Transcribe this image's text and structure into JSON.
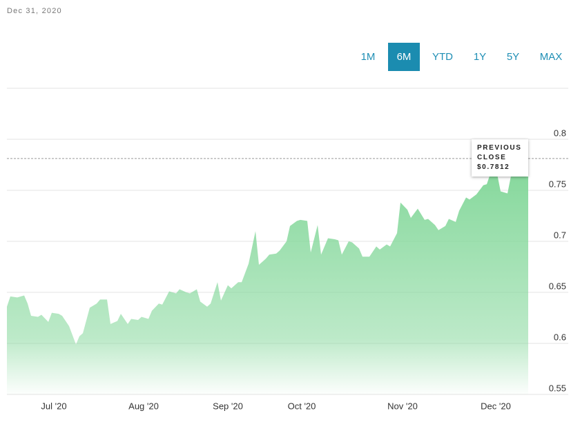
{
  "header": {
    "date": "Dec 31, 2020"
  },
  "range_buttons": {
    "labels": [
      "1M",
      "6M",
      "YTD",
      "1Y",
      "5Y",
      "MAX"
    ],
    "selected": 1
  },
  "chart_data": {
    "type": "area",
    "x": [
      0,
      1,
      3,
      5,
      6,
      7,
      9,
      10,
      12,
      13,
      15,
      16,
      18,
      20,
      21,
      22,
      24,
      26,
      27,
      29,
      30,
      32,
      33,
      35,
      36,
      38,
      39,
      41,
      42,
      44,
      45,
      47,
      49,
      50,
      52,
      53,
      55,
      56,
      58,
      59,
      61,
      62,
      64,
      65,
      67,
      68,
      70,
      72,
      73,
      75,
      76,
      78,
      79,
      81,
      82,
      84,
      85,
      87,
      88,
      90,
      91,
      93,
      95,
      96,
      97,
      99,
      100,
      102,
      103,
      105,
      107,
      108,
      110,
      111,
      113,
      114,
      116,
      117,
      119,
      121,
      122,
      124,
      125,
      127,
      128,
      130,
      131,
      133,
      134,
      136,
      138,
      139,
      140,
      142,
      143,
      145,
      146,
      148,
      149,
      151
    ],
    "values": [
      0.636,
      0.646,
      0.645,
      0.647,
      0.639,
      0.627,
      0.626,
      0.628,
      0.621,
      0.63,
      0.629,
      0.627,
      0.617,
      0.599,
      0.607,
      0.61,
      0.635,
      0.639,
      0.643,
      0.643,
      0.619,
      0.622,
      0.629,
      0.619,
      0.624,
      0.623,
      0.626,
      0.624,
      0.632,
      0.639,
      0.638,
      0.651,
      0.649,
      0.653,
      0.65,
      0.649,
      0.653,
      0.641,
      0.636,
      0.639,
      0.66,
      0.642,
      0.657,
      0.654,
      0.66,
      0.66,
      0.678,
      0.71,
      0.677,
      0.683,
      0.687,
      0.688,
      0.691,
      0.7,
      0.715,
      0.72,
      0.721,
      0.72,
      0.689,
      0.716,
      0.687,
      0.703,
      0.702,
      0.701,
      0.687,
      0.7,
      0.699,
      0.693,
      0.685,
      0.685,
      0.695,
      0.692,
      0.697,
      0.695,
      0.708,
      0.738,
      0.731,
      0.723,
      0.732,
      0.721,
      0.722,
      0.716,
      0.711,
      0.715,
      0.722,
      0.719,
      0.73,
      0.743,
      0.741,
      0.746,
      0.755,
      0.756,
      0.766,
      0.766,
      0.749,
      0.747,
      0.764,
      0.768,
      0.769,
      0.77
    ],
    "color": "#86d89c",
    "xlim": [
      0,
      162.6
    ],
    "ylim": [
      0.55,
      0.85
    ],
    "yticks": [
      0.55,
      0.6,
      0.65,
      0.7,
      0.75,
      0.8
    ],
    "xticks": [
      {
        "value": 13.6,
        "label": "Jul '20"
      },
      {
        "value": 39.6,
        "label": "Aug '20"
      },
      {
        "value": 64,
        "label": "Sep '20"
      },
      {
        "value": 85.4,
        "label": "Oct '20"
      },
      {
        "value": 114.6,
        "label": "Nov '20"
      },
      {
        "value": 141.6,
        "label": "Dec '20"
      }
    ],
    "grid": true,
    "reference": {
      "label": "PREVIOUS CLOSE",
      "value": 0.7812,
      "value_label": "$0.7812"
    }
  }
}
